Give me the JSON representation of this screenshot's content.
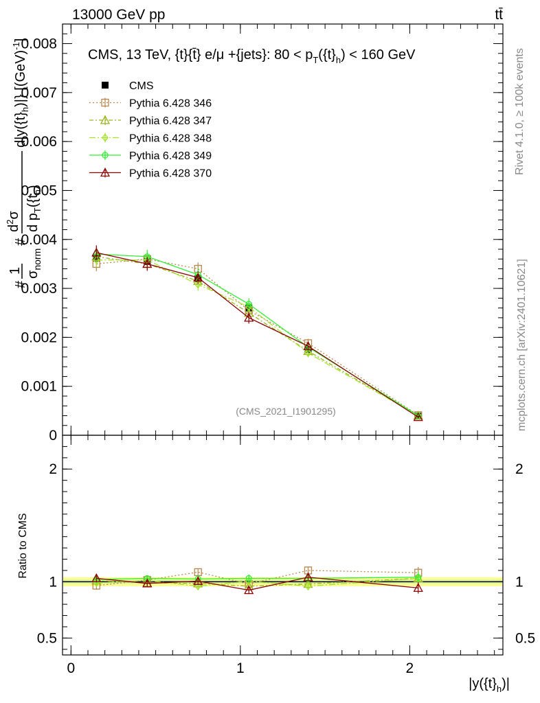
{
  "header": {
    "left": "13000 GeV pp",
    "right": "tt̄"
  },
  "side_labels": {
    "rivet": "Rivet 4.1.0, ≥ 100k events",
    "mcplots": "mcplots.cern.ch [arXiv:2401.10621]"
  },
  "colors": {
    "CMS": "#000000",
    "346": "#b8864b",
    "347": "#9ab31e",
    "348": "#a6e22e",
    "349": "#33ee33",
    "370": "#8b0000",
    "band_outer": "#fdfd96",
    "band_inner": "#dff7a0"
  },
  "chart_data": [
    {
      "type": "line",
      "panel": "main",
      "title": "CMS, 13 TeV, {t}{t̄} e/μ +{jets}: 80 <  p_T({t}_h) < 160 GeV",
      "title_parts": {
        "prefix": "CMS, 13 TeV, {t}{t̄} e/μ +{jets}: 80 <  p",
        "sub1": "T",
        "mid": "({t}",
        "sub2": "h",
        "suffix": ") < 160 GeV"
      },
      "ylabel": "#frac{1}{σ_norm} #frac{d²σ}{d p_T({t}_h) d|y({t}_h)|} [(GeV)⁻¹]",
      "ylabel_parts": [
        "#",
        "1",
        "σ",
        "norm",
        "#",
        "d",
        "2",
        "σ",
        "d p",
        "T",
        "({t",
        "h",
        ")",
        " d|y({t}",
        "h",
        ")|} [(GeV)",
        "-1",
        "]"
      ],
      "watermark": "(CMS_2021_I1901295)",
      "xlim": [
        -0.05,
        2.55
      ],
      "ylim": [
        0,
        0.0084
      ],
      "yticks": [
        0,
        0.001,
        0.002,
        0.003,
        0.004,
        0.005,
        0.006,
        0.007,
        0.008
      ],
      "ytick_labels": [
        "0",
        "0.001",
        "0.002",
        "0.003",
        "0.004",
        "0.005",
        "0.006",
        "0.007",
        "0.008"
      ],
      "x": [
        0.15,
        0.45,
        0.75,
        1.05,
        1.4,
        2.05
      ],
      "series": [
        {
          "name": "CMS",
          "key": "CMS",
          "marker": "square-filled",
          "values": [
            0.00362,
            0.00355,
            0.0032,
            0.0026,
            0.00175,
            0.00039
          ],
          "errors": [
            0.00012,
            0.0001,
            0.0001,
            8e-05,
            6e-05,
            2e-05
          ]
        },
        {
          "name": "Pythia 6.428 346",
          "key": "346",
          "marker": "square-open",
          "dash": "2,3",
          "values": [
            0.0035,
            0.0036,
            0.0034,
            0.00255,
            0.00188,
            0.00041
          ],
          "errors": [
            0.00015,
            0.00014,
            0.00013,
            0.00012,
            9e-05,
            3e-05
          ]
        },
        {
          "name": "Pythia 6.428 347",
          "key": "347",
          "marker": "triangle-open",
          "dash": "6,3,2,3",
          "values": [
            0.00365,
            0.0035,
            0.00315,
            0.0025,
            0.00172,
            0.0004
          ],
          "errors": [
            0.00015,
            0.00014,
            0.00013,
            0.00012,
            9e-05,
            3e-05
          ]
        },
        {
          "name": "Pythia 6.428 348",
          "key": "348",
          "marker": "diamond-open",
          "dash": "9,3,2,3",
          "values": [
            0.00358,
            0.00358,
            0.00308,
            0.00262,
            0.00168,
            0.0004
          ],
          "errors": [
            0.00015,
            0.00014,
            0.00013,
            0.00012,
            9e-05,
            3e-05
          ]
        },
        {
          "name": "Pythia 6.428 349",
          "key": "349",
          "marker": "circle-cross",
          "dash": "",
          "values": [
            0.0037,
            0.00365,
            0.00328,
            0.00268,
            0.0018,
            0.0004
          ],
          "errors": [
            0.00015,
            0.00014,
            0.00013,
            0.00012,
            9e-05,
            3e-05
          ]
        },
        {
          "name": "Pythia 6.428 370",
          "key": "370",
          "marker": "triangle-open",
          "dash": "",
          "values": [
            0.00373,
            0.0035,
            0.00322,
            0.0024,
            0.00182,
            0.00037
          ],
          "errors": [
            0.00015,
            0.00014,
            0.00013,
            0.00012,
            9e-05,
            3e-05
          ]
        }
      ]
    },
    {
      "type": "line",
      "panel": "ratio",
      "ylabel": "Ratio to CMS",
      "xlabel": "|y({t}_h)|",
      "xlabel_parts": [
        "|y({t}",
        "h",
        ")|"
      ],
      "xlim": [
        -0.05,
        2.55
      ],
      "ylim": [
        0.35,
        2.3
      ],
      "yticks": [
        0.5,
        1,
        2
      ],
      "ytick_labels": [
        "0.5",
        "1",
        "2"
      ],
      "xticks": [
        0,
        1,
        2
      ],
      "xtick_labels": [
        "0",
        "1",
        "2"
      ],
      "band_half_width": 0.04,
      "x": [
        0.15,
        0.45,
        0.75,
        1.05,
        1.4,
        2.05
      ],
      "series": [
        {
          "name": "Pythia 6.428 346",
          "key": "346",
          "marker": "square-open",
          "dash": "2,3",
          "values": [
            0.965,
            1.015,
            1.085,
            0.98,
            1.1,
            1.08
          ],
          "errors": [
            0.035,
            0.03,
            0.03,
            0.035,
            0.035,
            0.05
          ]
        },
        {
          "name": "Pythia 6.428 347",
          "key": "347",
          "marker": "triangle-open",
          "dash": "6,3,2,3",
          "values": [
            1.01,
            0.99,
            0.985,
            0.96,
            0.98,
            1.03
          ],
          "errors": [
            0.035,
            0.03,
            0.03,
            0.035,
            0.035,
            0.05
          ]
        },
        {
          "name": "Pythia 6.428 348",
          "key": "348",
          "marker": "diamond-open",
          "dash": "9,3,2,3",
          "values": [
            0.99,
            1.01,
            0.96,
            1.005,
            0.96,
            1.03
          ],
          "errors": [
            0.035,
            0.03,
            0.03,
            0.035,
            0.035,
            0.05
          ]
        },
        {
          "name": "Pythia 6.428 349",
          "key": "349",
          "marker": "circle-cross",
          "dash": "",
          "values": [
            1.02,
            1.03,
            1.025,
            1.03,
            1.03,
            1.04
          ],
          "errors": [
            0.035,
            0.03,
            0.03,
            0.035,
            0.035,
            0.05
          ]
        },
        {
          "name": "Pythia 6.428 370",
          "key": "370",
          "marker": "triangle-open",
          "dash": "",
          "values": [
            1.03,
            0.985,
            1.005,
            0.925,
            1.04,
            0.945
          ],
          "errors": [
            0.035,
            0.03,
            0.03,
            0.035,
            0.035,
            0.05
          ]
        }
      ]
    }
  ]
}
